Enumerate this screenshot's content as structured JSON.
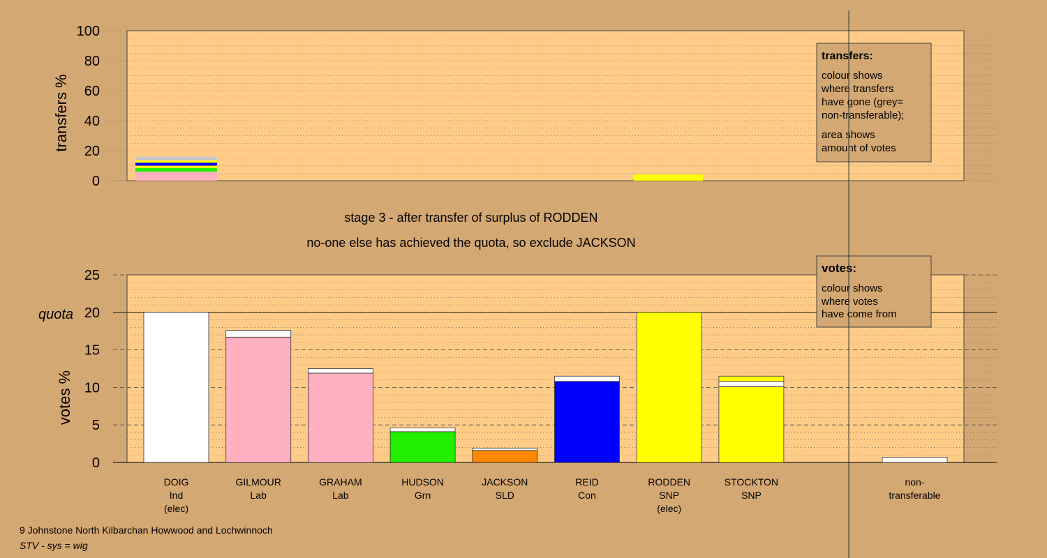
{
  "chart_data": [
    {
      "type": "bar",
      "stacked": true,
      "ylabel": "transfers %",
      "ylim": [
        0,
        100
      ],
      "yticks": [
        "0",
        "20",
        "40",
        "60",
        "80",
        "100"
      ],
      "legend_box": {
        "title": "transfers:",
        "lines": [
          "colour shows",
          "where transfers",
          "have gone (grey=",
          "non-transferable);"
        ],
        "lines2": [
          "area shows",
          "amount of votes"
        ]
      },
      "bars": [
        {
          "candidate": "GILMOUR",
          "segments": [
            {
              "color": "#FFB0C0",
              "value": 6
            },
            {
              "color": "#22EE00",
              "value": 2.5
            },
            {
              "color": "#FFFF00",
              "value": 1.5
            },
            {
              "color": "#0000FF",
              "value": 2
            },
            {
              "color": "#FFFF00",
              "value": 1.5
            },
            {
              "color": "#C8C8C8",
              "value": 2.5
            }
          ]
        },
        {
          "candidate": "RODDEN",
          "segments": [
            {
              "color": "#FFFF00",
              "value": 4
            }
          ]
        }
      ]
    },
    {
      "type": "bar",
      "stacked": true,
      "ylabel": "votes %",
      "quota_label": "quota",
      "quota": 20,
      "ylim": [
        0,
        25
      ],
      "yticks": [
        "0",
        "5",
        "10",
        "15",
        "20",
        "25"
      ],
      "legend_box": {
        "title": "votes:",
        "lines": [
          "colour shows",
          "where votes",
          "have come from"
        ]
      },
      "categories": [
        {
          "name": "DOIG",
          "party": "Ind",
          "elected": "(elec)"
        },
        {
          "name": "GILMOUR",
          "party": "Lab",
          "elected": ""
        },
        {
          "name": "GRAHAM",
          "party": "Lab",
          "elected": ""
        },
        {
          "name": "HUDSON",
          "party": "Grn",
          "elected": ""
        },
        {
          "name": "JACKSON",
          "party": "SLD",
          "elected": ""
        },
        {
          "name": "REID",
          "party": "Con",
          "elected": ""
        },
        {
          "name": "RODDEN",
          "party": "SNP",
          "elected": "(elec)"
        },
        {
          "name": "STOCKTON",
          "party": "SNP",
          "elected": ""
        }
      ],
      "nontransferable": {
        "line1": "non-",
        "line2": "transferable",
        "value": 0.7
      },
      "series": [
        {
          "candidate": "DOIG",
          "segments": [
            {
              "color": "#FFFFFF",
              "value": 20
            }
          ]
        },
        {
          "candidate": "GILMOUR",
          "segments": [
            {
              "color": "#FFB0C0",
              "value": 16.7
            },
            {
              "color": "#FFFFFF",
              "value": 0.9
            }
          ]
        },
        {
          "candidate": "GRAHAM",
          "segments": [
            {
              "color": "#FFB0C0",
              "value": 11.9
            },
            {
              "color": "#FFFFFF",
              "value": 0.6
            }
          ]
        },
        {
          "candidate": "HUDSON",
          "segments": [
            {
              "color": "#22EE00",
              "value": 4.1
            },
            {
              "color": "#FFFFFF",
              "value": 0.5
            }
          ]
        },
        {
          "candidate": "JACKSON",
          "segments": [
            {
              "color": "#FF8800",
              "value": 1.6
            },
            {
              "color": "#FFFFFF",
              "value": 0.3
            }
          ]
        },
        {
          "candidate": "REID",
          "segments": [
            {
              "color": "#0000FF",
              "value": 10.8
            },
            {
              "color": "#FFFFFF",
              "value": 0.7
            }
          ]
        },
        {
          "candidate": "RODDEN",
          "segments": [
            {
              "color": "#FFFF00",
              "value": 20
            }
          ]
        },
        {
          "candidate": "STOCKTON",
          "segments": [
            {
              "color": "#FFFF00",
              "value": 10.1
            },
            {
              "color": "#FFFFFF",
              "value": 0.7
            },
            {
              "color": "#FFFF00",
              "value": 0.7
            }
          ]
        }
      ]
    }
  ],
  "stage_text": {
    "line1": "stage 3 - after transfer of surplus of RODDEN",
    "line2": "no-one else has achieved the quota, so exclude JACKSON"
  },
  "footer": {
    "ward": "9 Johnstone North Kilbarchan Howwood and Lochwinnoch",
    "system": "STV - sys = wig"
  },
  "colors": {
    "background": "#D4A872",
    "plot_area": "#FFCC88"
  }
}
